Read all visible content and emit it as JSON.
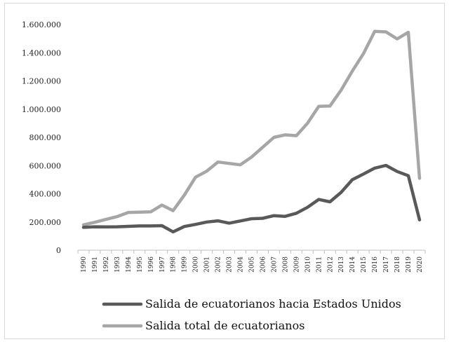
{
  "chart_data": {
    "type": "line",
    "title": "",
    "xlabel": "",
    "ylabel": "",
    "ylim": [
      0,
      1600000
    ],
    "y_ticks": [
      "0",
      "200.000",
      "400.000",
      "600.000",
      "800.000",
      "1.000.000",
      "1.200.000",
      "1.400.000",
      "1.600.000"
    ],
    "y_tick_values": [
      0,
      200000,
      400000,
      600000,
      800000,
      1000000,
      1200000,
      1400000,
      1600000
    ],
    "categories": [
      "1990",
      "1991",
      "1992",
      "1993",
      "1994",
      "1995",
      "1996",
      "1997",
      "1998",
      "1999",
      "2000",
      "2001",
      "2002",
      "2003",
      "2004",
      "2005",
      "2006",
      "2007",
      "2008",
      "2009",
      "2010",
      "2011",
      "2012",
      "2013",
      "2014",
      "2015",
      "2016",
      "2017",
      "2018",
      "2019",
      "2020"
    ],
    "grid": false,
    "legend_position": "bottom",
    "series": [
      {
        "name": "Salida de ecuatorianos hacia Estados Unidos",
        "color": "#595959",
        "values": [
          162000,
          166000,
          165000,
          166000,
          169000,
          172000,
          172000,
          174000,
          130000,
          168000,
          183000,
          200000,
          208000,
          192000,
          207000,
          223000,
          226000,
          245000,
          240000,
          262000,
          304000,
          360000,
          343000,
          410000,
          500000,
          540000,
          582000,
          601000,
          558000,
          528000,
          215000
        ]
      },
      {
        "name": "Salida total de ecuatorianos",
        "color": "#a6a6a6",
        "values": [
          180000,
          198000,
          218000,
          238000,
          268000,
          270000,
          272000,
          320000,
          280000,
          390000,
          518000,
          560000,
          625000,
          615000,
          605000,
          660000,
          730000,
          800000,
          818000,
          812000,
          900000,
          1020000,
          1022000,
          1135000,
          1270000,
          1395000,
          1552000,
          1548000,
          1498000,
          1545000,
          510000
        ]
      }
    ]
  }
}
